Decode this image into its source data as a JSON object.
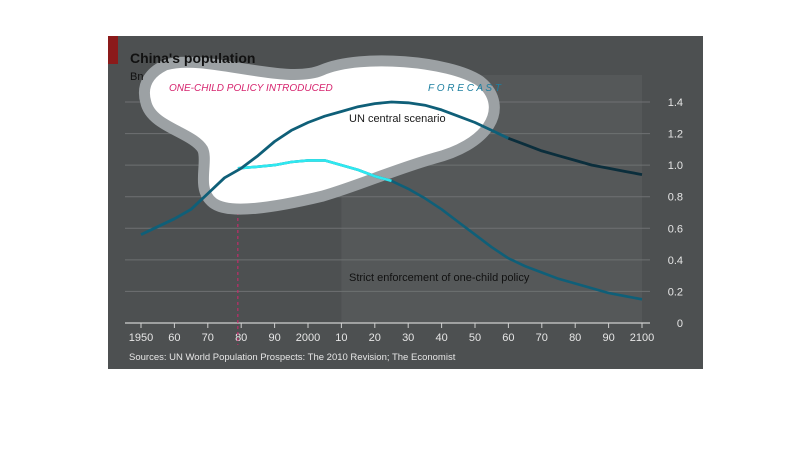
{
  "colors": {
    "panel": "#4d5051",
    "forecast_band": "#555859",
    "accent_bar": "#8b1a1a",
    "grid": "#6e7172",
    "axis_text": "#e6e6e6",
    "title_text": "#111111",
    "policy_line": "#d6246e",
    "forecast_label": "#1c7fa0",
    "series_main": "#0f5f78",
    "series_main_dark": "#0b2e3c",
    "series_strict": "#2ee8f0",
    "bubble_fill": "#ffffff",
    "bubble_ring": "#9ca1a4"
  },
  "chart_data": {
    "type": "line",
    "title": "China's population",
    "subtitle": "Bn",
    "xlim": [
      1950,
      2100
    ],
    "ylim": [
      0,
      1.4
    ],
    "x_ticks": [
      1950,
      1960,
      1970,
      1980,
      1990,
      2000,
      2010,
      2020,
      2030,
      2040,
      2050,
      2060,
      2070,
      2080,
      2090,
      2100
    ],
    "x_tick_labels": [
      "1950",
      "60",
      "70",
      "80",
      "90",
      "2000",
      "10",
      "20",
      "30",
      "40",
      "50",
      "60",
      "70",
      "80",
      "90",
      "2100"
    ],
    "y_ticks": [
      0,
      0.2,
      0.4,
      0.6,
      0.8,
      1.0,
      1.2,
      1.4
    ],
    "y_tick_labels": [
      "0",
      "0.2",
      "0.4",
      "0.6",
      "0.8",
      "1.0",
      "1.2",
      "1.4"
    ],
    "grid": true,
    "forecast_start": 2010,
    "policy_year": 1979,
    "annotations": {
      "policy": "ONE-CHILD POLICY INTRODUCED",
      "forecast": "F O R E C A S T"
    },
    "series": [
      {
        "name": "UN central scenario",
        "x": [
          1950,
          1955,
          1960,
          1965,
          1970,
          1975,
          1980,
          1985,
          1990,
          1995,
          2000,
          2005,
          2010,
          2015,
          2020,
          2025,
          2030,
          2035,
          2040,
          2045,
          2050,
          2055,
          2060,
          2065,
          2070,
          2075,
          2080,
          2085,
          2090,
          2095,
          2100
        ],
        "values": [
          0.56,
          0.61,
          0.66,
          0.72,
          0.82,
          0.92,
          0.98,
          1.06,
          1.15,
          1.22,
          1.27,
          1.31,
          1.34,
          1.37,
          1.39,
          1.4,
          1.395,
          1.38,
          1.35,
          1.31,
          1.27,
          1.22,
          1.17,
          1.13,
          1.09,
          1.06,
          1.03,
          1.0,
          0.98,
          0.96,
          0.94
        ]
      },
      {
        "name": "Strict enforcement of one-child policy",
        "x": [
          1979,
          1985,
          1990,
          1995,
          2000,
          2005,
          2010,
          2015,
          2020,
          2025,
          2030,
          2035,
          2040,
          2045,
          2050,
          2055,
          2060,
          2065,
          2070,
          2075,
          2080,
          2085,
          2090,
          2095,
          2100
        ],
        "values": [
          0.98,
          0.99,
          1.0,
          1.02,
          1.03,
          1.03,
          1.0,
          0.97,
          0.93,
          0.9,
          0.85,
          0.79,
          0.72,
          0.64,
          0.56,
          0.48,
          0.41,
          0.36,
          0.32,
          0.28,
          0.25,
          0.22,
          0.19,
          0.17,
          0.15
        ]
      }
    ],
    "source": "Sources: UN World Population Prospects: The 2010 Revision; The Economist"
  }
}
